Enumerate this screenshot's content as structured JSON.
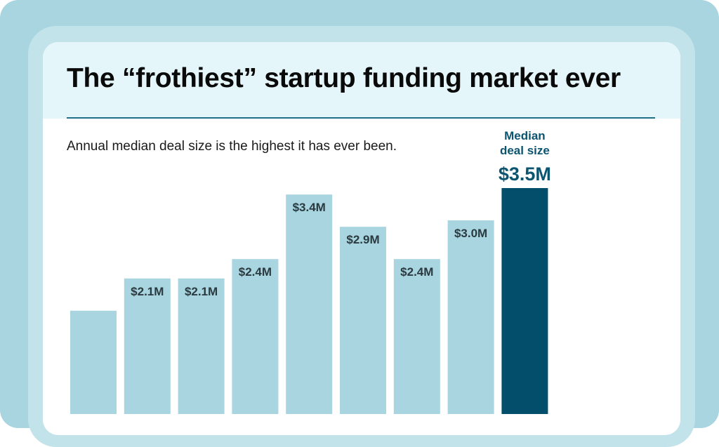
{
  "chart_data": {
    "type": "bar",
    "title": "The “frothiest” startup funding market ever",
    "subtitle": "Annual median deal size is the highest it has ever been.",
    "categories": [
      "",
      "",
      "",
      "",
      "",
      "",
      "",
      "",
      ""
    ],
    "values": [
      1.6,
      2.1,
      2.1,
      2.4,
      3.4,
      2.9,
      2.4,
      3.0,
      3.5
    ],
    "labels": [
      "",
      "$2.1M",
      "$2.1M",
      "$2.4M",
      "$3.4M",
      "$2.9M",
      "$2.4M",
      "$3.0M",
      ""
    ],
    "highlight_index": 8,
    "highlight_annotation": {
      "line1": "Median",
      "line2": "deal size",
      "value": "$3.5M"
    },
    "unit": "$M",
    "ylim": [
      0,
      3.5
    ],
    "colors": {
      "bar": "#a8d5df",
      "highlight": "#034e6b",
      "label_dark": "#2b3a40",
      "label_accent": "#0c5570",
      "annotation": "#0c5570"
    }
  }
}
